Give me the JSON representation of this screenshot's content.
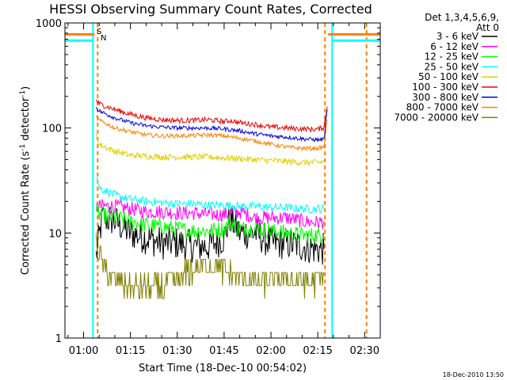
{
  "chart_data": {
    "type": "line",
    "title": "HESSI Observing Summary Count Rates, Corrected",
    "xlabel": "Start Time (18-Dec-10 00:54:02)",
    "ylabel_main": "Corrected Count Rate (s",
    "ylabel_sup1": "-1",
    "ylabel_mid": " detector",
    "ylabel_sup2": "-1",
    "ylabel_end": ")",
    "yscale": "log",
    "ylim": [
      1,
      1000
    ],
    "xlim_minutes": [
      54.03,
      155
    ],
    "x_ticks": [
      "01:00",
      "01:15",
      "01:30",
      "01:45",
      "02:00",
      "02:15",
      "02:30"
    ],
    "y_ticks": [
      "1",
      "10",
      "100",
      "1000"
    ],
    "legend_header_1": "Det 1,3,4,5,6,9,",
    "legend_header_2": "Att 0",
    "legend_placement": "right",
    "footer_timestamp": "18-Dec-2010 13:50",
    "markers": {
      "saa_label": "S",
      "night_label": "N"
    },
    "series": [
      {
        "name": "3 - 6 keV",
        "color": "#000000",
        "x": [
          64,
          66,
          70,
          75,
          80,
          85,
          90,
          95,
          100,
          105,
          107,
          110,
          115,
          120,
          125,
          130,
          135,
          137
        ],
        "y": [
          6,
          14,
          13,
          10,
          9,
          8,
          8,
          7.5,
          7.5,
          9,
          14,
          10,
          10,
          8,
          8,
          7.5,
          7,
          7
        ]
      },
      {
        "name": "6 - 12 keV",
        "color": "#ff00ff",
        "x": [
          64,
          65,
          70,
          75,
          80,
          85,
          90,
          95,
          100,
          105,
          110,
          115,
          120,
          125,
          130,
          135,
          137
        ],
        "y": [
          17,
          18,
          18,
          17,
          16,
          16,
          15.5,
          15.5,
          15,
          15,
          16,
          14,
          14,
          14,
          13,
          12.5,
          13
        ]
      },
      {
        "name": "12 - 25 keV",
        "color": "#00ff00",
        "x": [
          64,
          65,
          70,
          75,
          80,
          85,
          90,
          95,
          100,
          105,
          107,
          110,
          115,
          120,
          125,
          130,
          135,
          137
        ],
        "y": [
          16,
          15,
          14,
          13,
          12,
          11.5,
          11,
          10.5,
          10.5,
          11,
          12.5,
          11,
          11,
          10.5,
          10,
          9.5,
          9.5,
          10
        ]
      },
      {
        "name": "25 - 50 keV",
        "color": "#00ffff",
        "x": [
          64,
          65,
          70,
          75,
          80,
          85,
          90,
          95,
          100,
          105,
          110,
          115,
          120,
          125,
          130,
          135,
          137
        ],
        "y": [
          36,
          27,
          23,
          21,
          20,
          19.5,
          19,
          19,
          18.5,
          18.5,
          18,
          18,
          17.5,
          17.5,
          17,
          17,
          17
        ]
      },
      {
        "name": "50 - 100 keV",
        "color": "#e0d000",
        "x": [
          64,
          65,
          70,
          75,
          80,
          85,
          90,
          95,
          100,
          105,
          110,
          115,
          120,
          125,
          130,
          135,
          137
        ],
        "y": [
          85,
          70,
          60,
          55,
          54,
          53,
          53,
          53,
          53,
          52,
          51,
          50,
          49,
          48,
          47,
          47,
          48
        ]
      },
      {
        "name": "100 - 300 keV",
        "color": "#ee0000",
        "x": [
          64,
          65,
          70,
          75,
          80,
          85,
          90,
          95,
          100,
          105,
          107,
          110,
          115,
          120,
          125,
          130,
          135,
          137,
          138
        ],
        "y": [
          185,
          170,
          150,
          135,
          125,
          120,
          118,
          118,
          120,
          115,
          118,
          112,
          108,
          102,
          100,
          98,
          97,
          102,
          160
        ]
      },
      {
        "name": "300 - 800 keV",
        "color": "#0000dd",
        "x": [
          64,
          65,
          70,
          75,
          80,
          85,
          90,
          95,
          100,
          105,
          110,
          115,
          120,
          125,
          130,
          135,
          137,
          138
        ],
        "y": [
          158,
          145,
          125,
          112,
          105,
          102,
          100,
          100,
          100,
          98,
          94,
          88,
          84,
          82,
          79,
          77,
          78,
          150
        ]
      },
      {
        "name": "800 - 7000 keV",
        "color": "#ff8000",
        "x": [
          64,
          65,
          70,
          75,
          80,
          85,
          90,
          95,
          100,
          105,
          110,
          115,
          120,
          125,
          130,
          135,
          137,
          138
        ],
        "y": [
          128,
          118,
          100,
          92,
          86,
          84,
          84,
          85,
          86,
          84,
          80,
          75,
          70,
          66,
          64,
          64,
          66,
          120
        ]
      },
      {
        "name": "7000 - 20000 keV",
        "color": "#808000",
        "x": [
          64,
          65,
          67,
          70,
          75,
          80,
          85,
          90,
          95,
          100,
          104,
          108,
          112,
          115,
          120,
          125,
          130,
          135,
          137
        ],
        "y": [
          8,
          6.5,
          4.5,
          3.5,
          3,
          3,
          3,
          3.5,
          4.5,
          5,
          4.5,
          4,
          3.5,
          3.5,
          3.5,
          3.5,
          3.5,
          3.5,
          4
        ]
      }
    ],
    "vertical_lines": [
      {
        "x": 63,
        "color": "#00ffff",
        "style": "solid"
      },
      {
        "x": 64.5,
        "color": "#ff8000",
        "style": "dashed"
      },
      {
        "x": 137.3,
        "color": "#ff8000",
        "style": "dashed"
      },
      {
        "x": 139.6,
        "color": "#00ffff",
        "style": "solid"
      },
      {
        "x": 150.6,
        "color": "#ff8000",
        "style": "dashed"
      }
    ],
    "top_bars": [
      {
        "from": 54.03,
        "to": 63.5,
        "color": "#ff8000",
        "level": 780
      },
      {
        "from": 54.03,
        "to": 63,
        "color": "#00ffff",
        "level": 680
      },
      {
        "from": 138.3,
        "to": 155,
        "color": "#ff8000",
        "level": 780
      },
      {
        "from": 139.6,
        "to": 155,
        "color": "#00ffff",
        "level": 680
      }
    ]
  }
}
